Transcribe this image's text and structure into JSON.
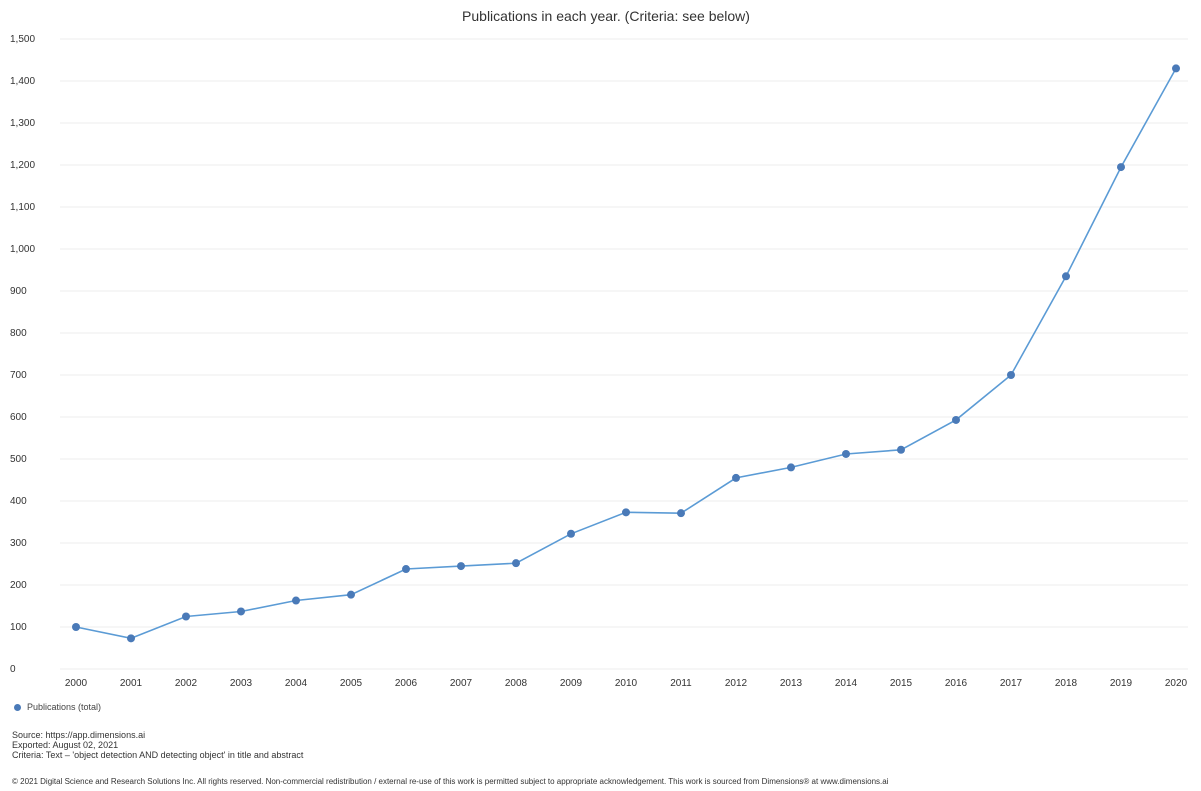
{
  "colors": {
    "series": "#4a7ab8",
    "line": "#5b9bd5",
    "grid": "#eeeeee"
  },
  "chart_data": {
    "type": "line",
    "title": "Publications in each year. (Criteria: see below)",
    "x": [
      "2000",
      "2001",
      "2002",
      "2003",
      "2004",
      "2005",
      "2006",
      "2007",
      "2008",
      "2009",
      "2010",
      "2011",
      "2012",
      "2013",
      "2014",
      "2015",
      "2016",
      "2017",
      "2018",
      "2019",
      "2020"
    ],
    "series": [
      {
        "name": "Publications (total)",
        "values": [
          100,
          73,
          125,
          137,
          163,
          177,
          238,
          245,
          252,
          322,
          373,
          371,
          455,
          480,
          512,
          522,
          593,
          700,
          935,
          1195,
          1430
        ]
      }
    ],
    "ylim": [
      0,
      1500
    ],
    "yticks": [
      0,
      100,
      200,
      300,
      400,
      500,
      600,
      700,
      800,
      900,
      1000,
      1100,
      1200,
      1300,
      1400,
      1500
    ],
    "ytick_labels": [
      "0",
      "100",
      "200",
      "300",
      "400",
      "500",
      "600",
      "700",
      "800",
      "900",
      "1,000",
      "1,100",
      "1,200",
      "1,300",
      "1,400",
      "1,500"
    ],
    "grid": true,
    "legend_position": "bottom-left"
  },
  "footer": {
    "source": "Source: https://app.dimensions.ai",
    "exported": "Exported: August 02, 2021",
    "criteria": "Criteria: Text – 'object detection AND detecting object' in title and abstract",
    "copyright": "© 2021 Digital Science and Research Solutions Inc. All rights reserved. Non-commercial redistribution / external re-use of this work is permitted subject to appropriate acknowledgement. This work is sourced from Dimensions® at www.dimensions.ai"
  }
}
